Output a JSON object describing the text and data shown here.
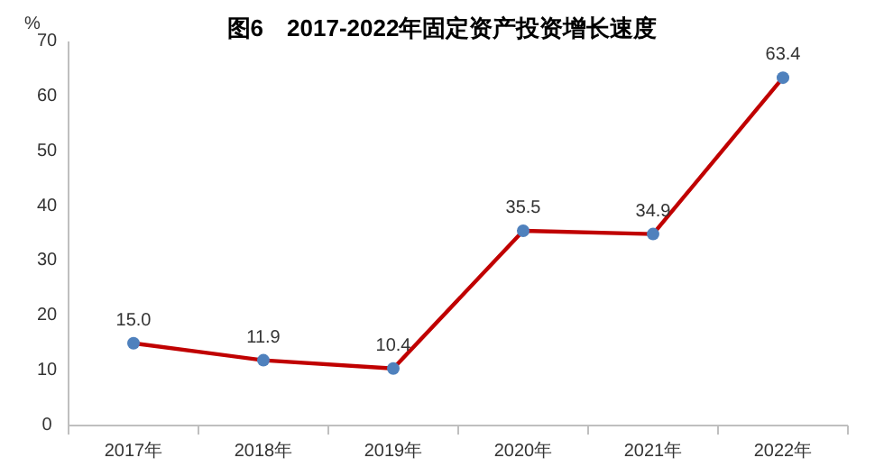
{
  "chart_data": {
    "type": "line",
    "title": "图6　2017-2022年固定资产投资增长速度",
    "ylabel": "%",
    "categories": [
      "2017年",
      "2018年",
      "2019年",
      "2020年",
      "2021年",
      "2022年"
    ],
    "series": [
      {
        "color": "#c00000",
        "values": [
          15.0,
          11.9,
          10.4,
          35.5,
          34.9,
          63.4
        ],
        "value_labels": [
          "15.0",
          "11.9",
          "10.4",
          "35.5",
          "34.9",
          "63.4"
        ]
      }
    ],
    "ylim": [
      0,
      70
    ],
    "yticks": [
      0,
      10,
      20,
      30,
      40,
      50,
      60,
      70
    ],
    "marker": "circle",
    "grid": false
  }
}
